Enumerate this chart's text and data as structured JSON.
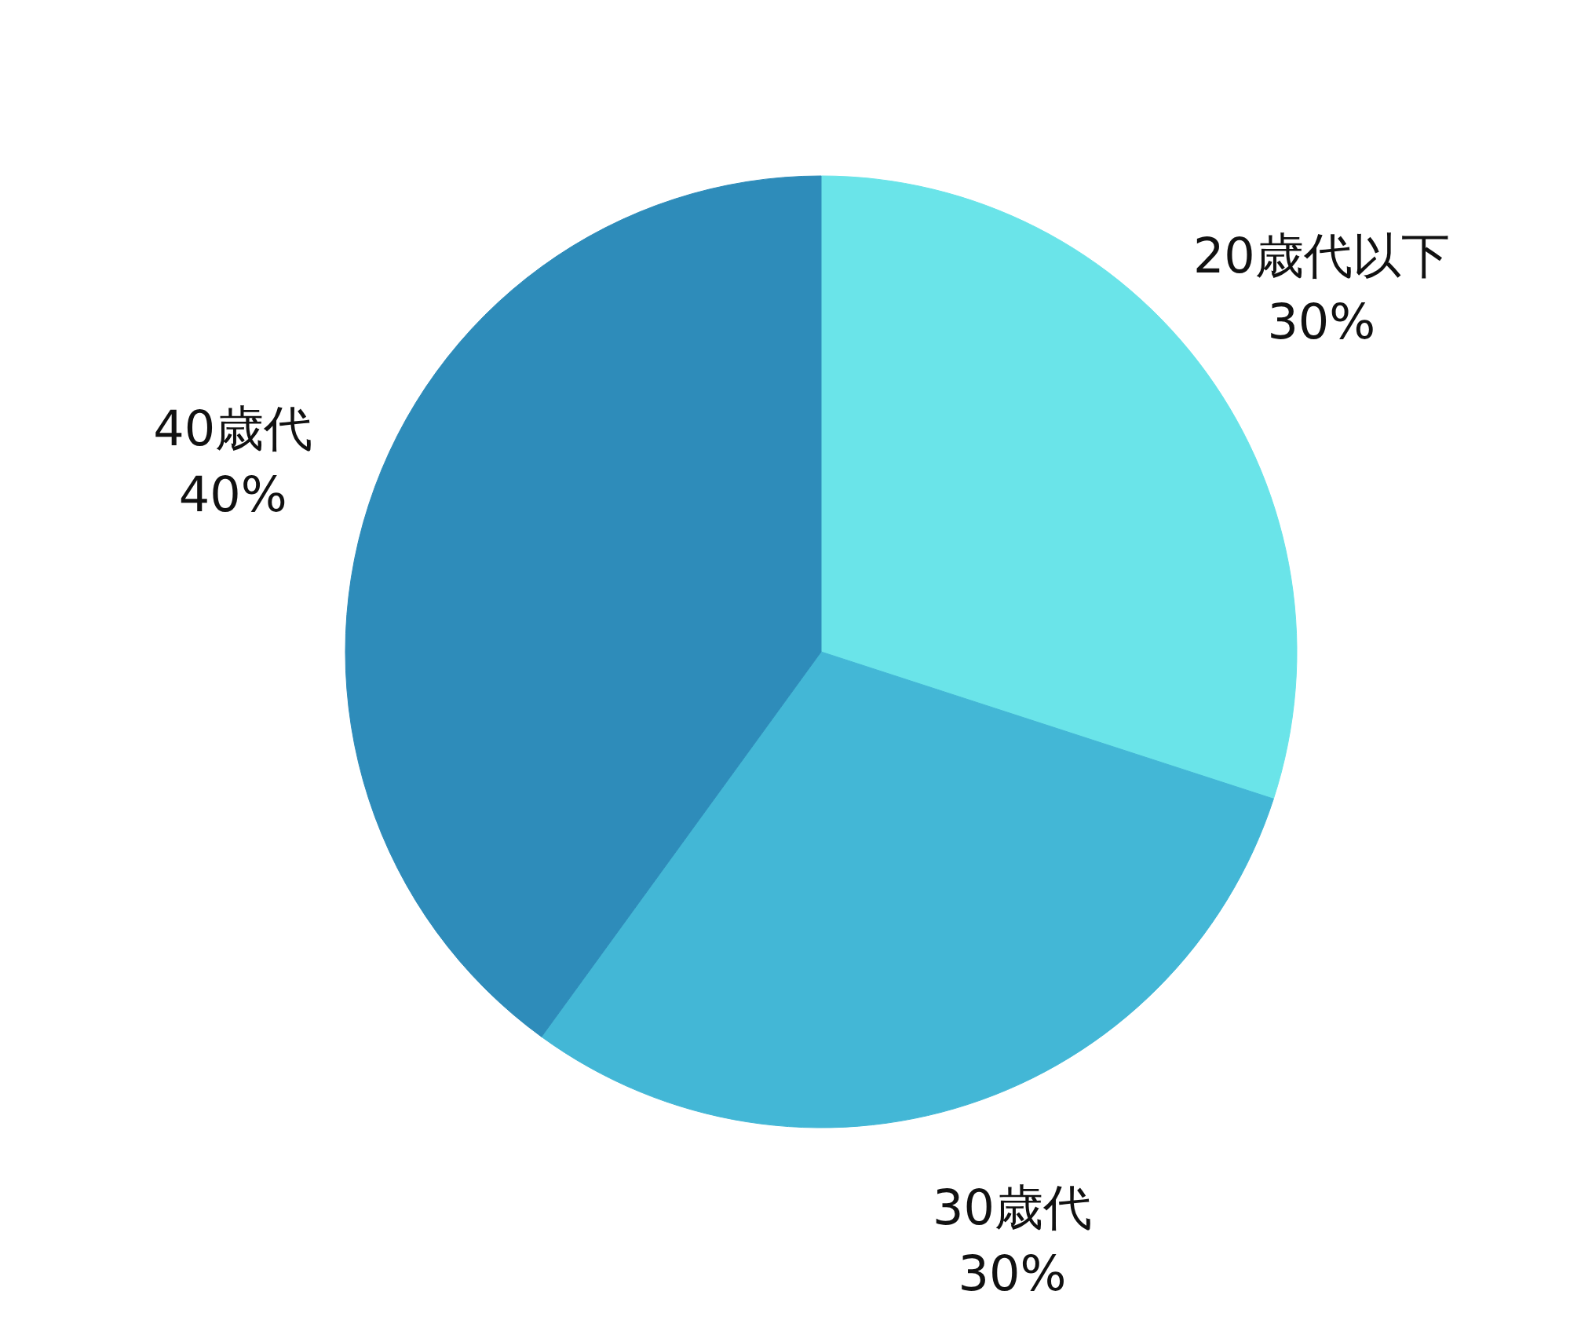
{
  "chart_data": {
    "type": "pie",
    "categories": [
      "20歳代以下",
      "30歳代",
      "40歳代"
    ],
    "values": [
      30,
      30,
      40
    ],
    "value_labels": [
      "30%",
      "30%",
      "40%"
    ],
    "colors": [
      "#6ae4e9",
      "#43b7d6",
      "#2e8cba"
    ]
  }
}
